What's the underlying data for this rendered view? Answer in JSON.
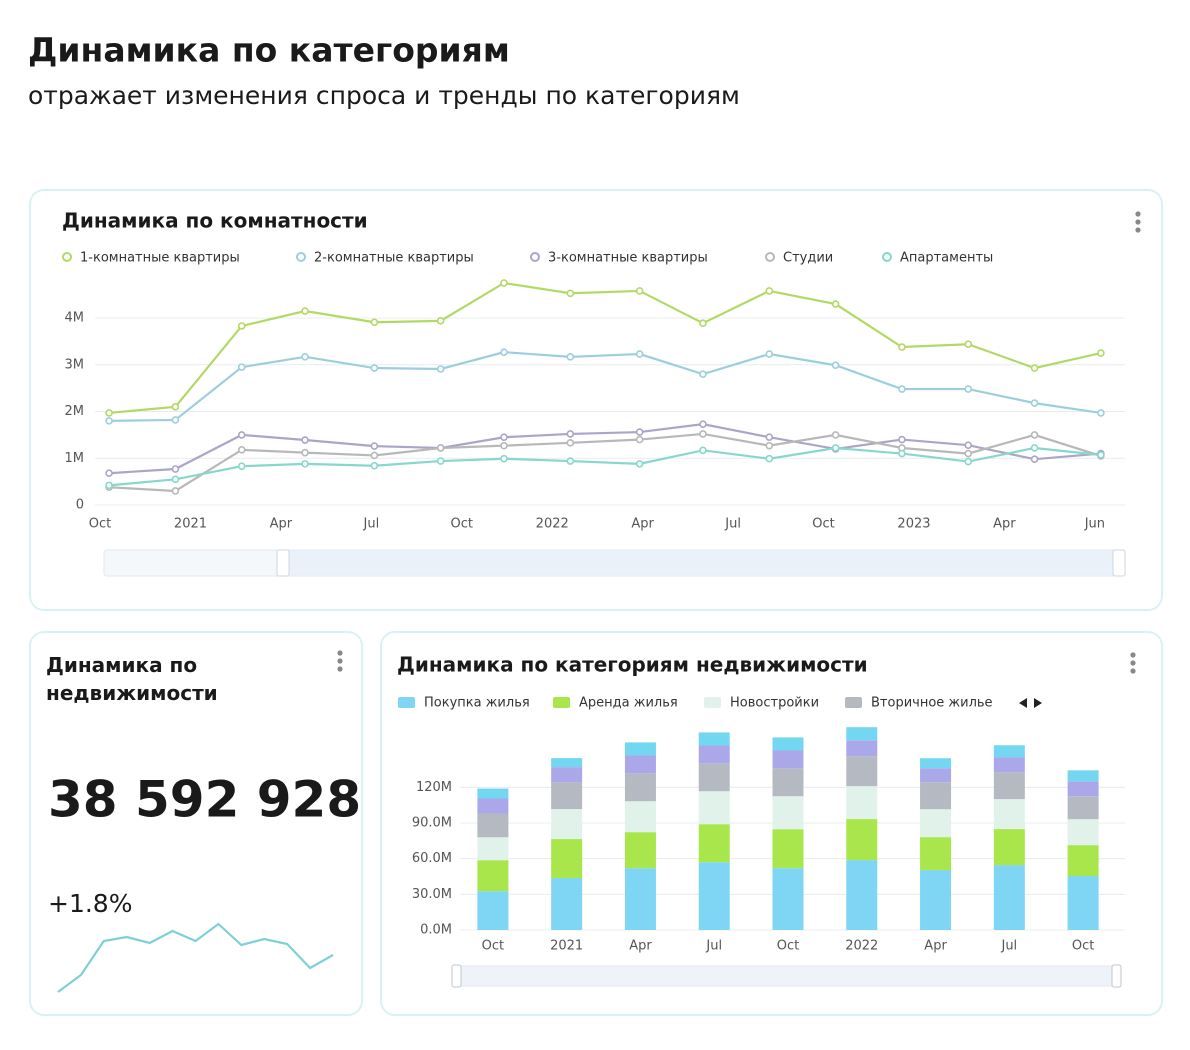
{
  "header": {
    "title": "Динамика по категориям",
    "subtitle": "отражает изменения спроса и тренды по категориям"
  },
  "chart_data": [
    {
      "type": "line",
      "title": "Динамика по комнатности",
      "x": [
        0.3,
        2.5,
        4.7,
        6.8,
        9.1,
        11.3,
        13.4,
        15.6,
        17.9,
        20,
        22.2,
        24.4,
        26.6,
        28.8,
        31,
        33.2
      ],
      "xlim": [
        -0.3,
        34
      ],
      "xticks": [
        {
          "value": 0,
          "label": "Oct"
        },
        {
          "value": 3,
          "label": "2021"
        },
        {
          "value": 6,
          "label": "Apr"
        },
        {
          "value": 9,
          "label": "Jul"
        },
        {
          "value": 12,
          "label": "Oct"
        },
        {
          "value": 15,
          "label": "2022"
        },
        {
          "value": 18,
          "label": "Apr"
        },
        {
          "value": 21,
          "label": "Jul"
        },
        {
          "value": 24,
          "label": "Oct"
        },
        {
          "value": 27,
          "label": "2023"
        },
        {
          "value": 30,
          "label": "Apr"
        },
        {
          "value": 33,
          "label": "Jun"
        }
      ],
      "ylim": [
        0,
        4600000
      ],
      "yticks": [
        0,
        {
          "value": 1000000,
          "label": "1M"
        },
        {
          "value": 2000000,
          "label": "2M"
        },
        {
          "value": 3000000,
          "label": "3M"
        },
        {
          "value": 4000000,
          "label": "4M"
        }
      ],
      "grid": true,
      "series": [
        {
          "name": "1-комнатные квартиры",
          "color": "#b3d965",
          "values": [
            1970000,
            2100000,
            3830000,
            4150000,
            3910000,
            3940000,
            4750000,
            4530000,
            4580000,
            3890000,
            4580000,
            4300000,
            3380000,
            3440000,
            2930000,
            3250000
          ]
        },
        {
          "name": "2-комнатные квартиры",
          "color": "#9ccfdd",
          "values": [
            1800000,
            1820000,
            2950000,
            3170000,
            2930000,
            2910000,
            3270000,
            3170000,
            3230000,
            2800000,
            3230000,
            2990000,
            2480000,
            2480000,
            2180000,
            1970000
          ]
        },
        {
          "name": "3-комнатные квартиры",
          "color": "#aaa5c9",
          "values": [
            680000,
            770000,
            1500000,
            1390000,
            1260000,
            1220000,
            1450000,
            1520000,
            1560000,
            1730000,
            1450000,
            1200000,
            1400000,
            1280000,
            980000,
            1100000
          ]
        },
        {
          "name": "Студии",
          "color": "#b8b8b8",
          "values": [
            380000,
            300000,
            1180000,
            1120000,
            1060000,
            1220000,
            1270000,
            1330000,
            1400000,
            1520000,
            1270000,
            1500000,
            1220000,
            1100000,
            1500000,
            1050000
          ]
        },
        {
          "name": "Апартаменты",
          "color": "#86d7cc",
          "values": [
            420000,
            550000,
            830000,
            880000,
            840000,
            940000,
            990000,
            940000,
            880000,
            1170000,
            990000,
            1220000,
            1100000,
            930000,
            1220000,
            1070000
          ]
        }
      ]
    },
    {
      "type": "kpi",
      "title": "Динамика по недвижимости",
      "value": "38 592 928",
      "change": "+1.8%",
      "color": "#7fd0d6",
      "values": [
        28,
        45,
        79,
        83,
        77,
        89,
        79,
        96,
        75,
        81,
        76,
        52,
        65
      ]
    },
    {
      "type": "stacked_bar",
      "title": "Динамика по категориям недвижимости",
      "categories": [
        "Oct",
        "2021",
        "Apr",
        "Jul",
        "Oct",
        "2022",
        "Apr",
        "Jul",
        "Oct"
      ],
      "ylim": [
        0,
        180000000
      ],
      "yticks": [
        {
          "value": 0,
          "label": "0.0M"
        },
        {
          "value": 30000000,
          "label": "30.0M"
        },
        {
          "value": 60000000,
          "label": "60.0M"
        },
        {
          "value": 90000000,
          "label": "90.0M"
        },
        {
          "value": 120000000,
          "label": "120M"
        }
      ],
      "grid": true,
      "series": [
        {
          "name": "Покупка жилья",
          "color": "#7fd6f4",
          "values": [
            32700000,
            43700000,
            52000000,
            57000000,
            52000000,
            58800000,
            50400000,
            54600000,
            45400000
          ]
        },
        {
          "name": "Аренда жилья",
          "color": "#a8e64c",
          "values": [
            26000000,
            32800000,
            30300000,
            32000000,
            32800000,
            34500000,
            27700000,
            30300000,
            26000000
          ]
        },
        {
          "name": "Новостройки",
          "color": "#e0f2ea",
          "values": [
            19300000,
            25200000,
            26000000,
            27700000,
            27700000,
            27700000,
            23500000,
            25200000,
            21800000
          ]
        },
        {
          "name": "Вторичное жилье",
          "color": "#b5b9c2",
          "values": [
            20000000,
            22700000,
            23500000,
            23500000,
            23500000,
            25200000,
            22700000,
            22700000,
            19300000
          ]
        },
        {
          "color": "#aba8ea",
          "values": [
            12600000,
            12600000,
            15000000,
            15000000,
            15000000,
            13400000,
            11800000,
            12600000,
            12600000
          ]
        },
        {
          "color": "#74d7f1",
          "values": [
            8400000,
            7600000,
            11000000,
            11000000,
            11000000,
            11000000,
            8400000,
            10000000,
            9200000
          ]
        }
      ]
    }
  ]
}
